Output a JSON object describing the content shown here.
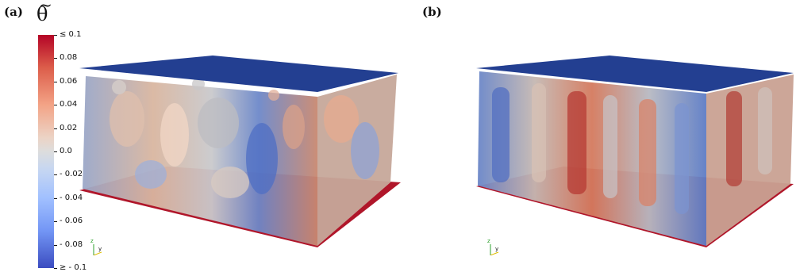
{
  "panels": [
    {
      "label": "(a)"
    },
    {
      "label": "(b)"
    }
  ],
  "colorbar": {
    "symbol": "θ",
    "tilde": "~",
    "ticks": [
      "≤ 0.1",
      "0.08",
      "0.06",
      "0.04",
      "0.02",
      "0.0",
      "- 0.02",
      "- 0.04",
      "- 0.06",
      "- 0.08",
      "≥ - 0.1"
    ],
    "colors": {
      "max": "#b40426",
      "mid": "#dddddd",
      "min": "#3b4cc0"
    }
  },
  "axes_triad": {
    "labels": [
      "z",
      "y",
      "x"
    ]
  }
}
